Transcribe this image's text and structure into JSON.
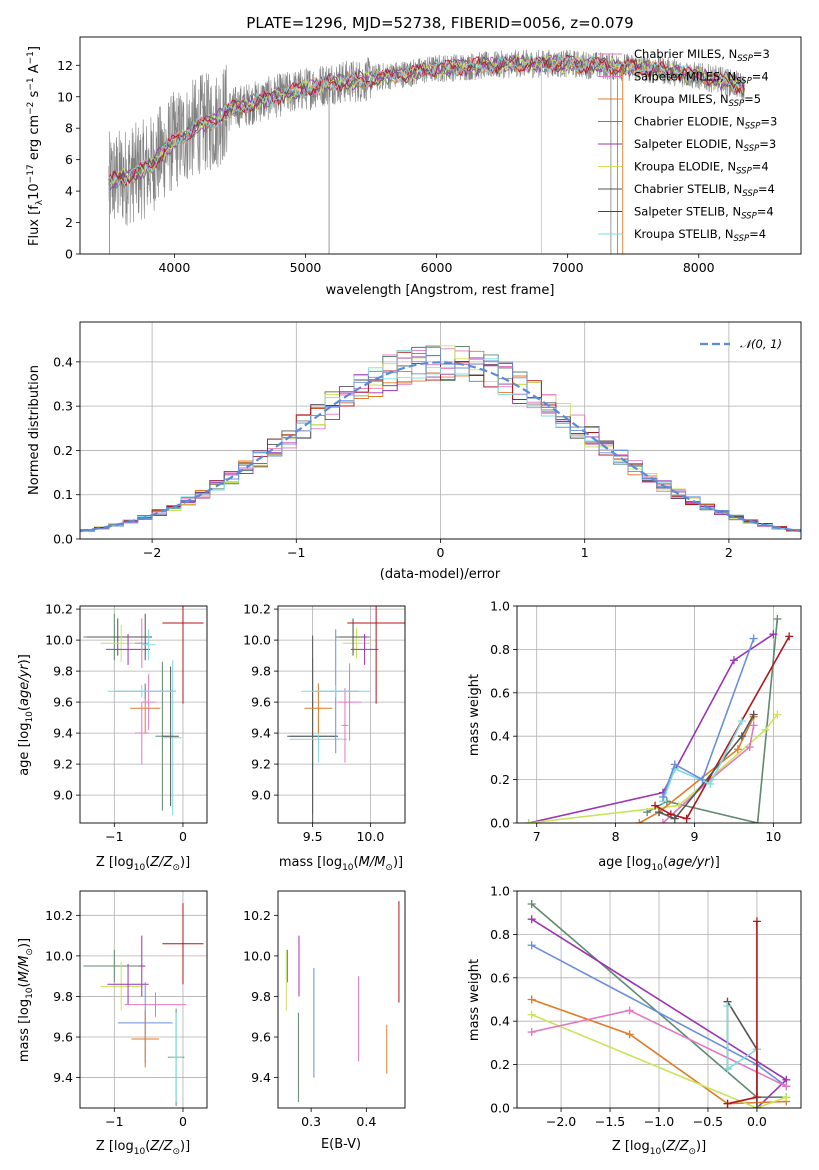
{
  "figure_title": "PLATE=1296, MJD=52738, FIBERID=0056, z=0.079",
  "colors": {
    "Chabrier MILES": "#e377c2",
    "Salpeter MILES": "#e377c2",
    "Kroupa MILES": "#e07b29",
    "Chabrier ELODIE": "#5e8a6e",
    "Salpeter ELODIE": "#9b34b3",
    "Kroupa ELODIE": "#c9e45a",
    "Chabrier STELIB": "#555555",
    "Salpeter STELIB": "#b3161a",
    "Kroupa STELIB": "#7fdce0",
    "normal": "#5b8bd6",
    "blue": "#6a8fdc",
    "data": "#808080"
  },
  "chart_data": [
    {
      "id": "spectrum",
      "type": "line",
      "xlabel": "wavelength [Angstrom, rest frame]",
      "ylabel": "Flux [fλ10⁻¹⁷ erg cm⁻² s⁻¹ A⁻¹]",
      "xlim": [
        3280,
        8780
      ],
      "ylim": [
        0,
        13.8
      ],
      "xticks": [
        4000,
        5000,
        6000,
        7000,
        8000
      ],
      "yticks": [
        0,
        2,
        4,
        6,
        8,
        10,
        12
      ],
      "grid": false,
      "legend": "top-right",
      "continuum_points": [
        [
          3500,
          4.6
        ],
        [
          3650,
          5.0
        ],
        [
          3800,
          5.5
        ],
        [
          3900,
          6.4
        ],
        [
          4000,
          7.2
        ],
        [
          4100,
          7.7
        ],
        [
          4200,
          8.3
        ],
        [
          4300,
          8.4
        ],
        [
          4400,
          9.1
        ],
        [
          4500,
          9.4
        ],
        [
          4600,
          9.6
        ],
        [
          4800,
          10.1
        ],
        [
          5000,
          10.5
        ],
        [
          5200,
          10.9
        ],
        [
          5400,
          11.0
        ],
        [
          5600,
          11.3
        ],
        [
          5800,
          11.5
        ],
        [
          6000,
          11.8
        ],
        [
          6200,
          11.9
        ],
        [
          6400,
          12.0
        ],
        [
          6600,
          12.1
        ],
        [
          6800,
          12.1
        ],
        [
          7000,
          12.1
        ],
        [
          7200,
          12.0
        ],
        [
          7400,
          11.9
        ],
        [
          7600,
          11.8
        ],
        [
          7800,
          11.6
        ],
        [
          8000,
          11.3
        ],
        [
          8200,
          11.0
        ],
        [
          8350,
          10.6
        ]
      ],
      "series": [
        {
          "name": "Chabrier MILES, N_SSP=3"
        },
        {
          "name": "Salpeter MILES, N_SSP=4"
        },
        {
          "name": "Kroupa MILES, N_SSP=5"
        },
        {
          "name": "Chabrier ELODIE, N_SSP=3"
        },
        {
          "name": "Salpeter ELODIE, N_SSP=3"
        },
        {
          "name": "Kroupa ELODIE, N_SSP=4"
        },
        {
          "name": "Chabrier STELIB, N_SSP=4"
        },
        {
          "name": "Salpeter STELIB, N_SSP=4"
        },
        {
          "name": "Kroupa STELIB, N_SSP=4"
        }
      ]
    },
    {
      "id": "residuals",
      "type": "bar",
      "xlabel": "(data-model)/error",
      "ylabel": "Normed distribution",
      "xlim": [
        -2.5,
        2.5
      ],
      "ylim": [
        0,
        0.49
      ],
      "xticks": [
        -2,
        -1,
        0,
        1,
        2
      ],
      "yticks": [
        0.0,
        0.1,
        0.2,
        0.3,
        0.4
      ],
      "grid": true,
      "legend": "top-right",
      "bin_width": 0.1,
      "reference": {
        "name": "𝒩(0, 1)",
        "mean": 0,
        "sigma": 1
      }
    },
    {
      "id": "age-vs-Z",
      "type": "scatter",
      "xlabel": "Z [log10(Z/Z⊙)]",
      "ylabel": "age [log10(age/yr)]",
      "xlim": [
        -1.5,
        0.35
      ],
      "ylim": [
        8.82,
        10.22
      ],
      "xticks": [
        -1,
        0
      ],
      "yticks": [
        9.0,
        9.2,
        9.4,
        9.6,
        9.8,
        10.0,
        10.2
      ],
      "grid": true,
      "points": [
        {
          "model": "Chabrier ELODIE",
          "x": -1.0,
          "y": 10.02,
          "xerr": 0.45,
          "yerr": 0.15
        },
        {
          "model": "Chabrier STELIB",
          "x": -0.95,
          "y": 10.02,
          "xerr": 0.45,
          "yerr": 0.12
        },
        {
          "model": "Kroupa ELODIE",
          "x": -0.9,
          "y": 9.98,
          "xerr": 0.3,
          "yerr": 0.12
        },
        {
          "model": "Salpeter ELODIE",
          "x": -0.8,
          "y": 9.94,
          "xerr": 0.32,
          "yerr": 0.1
        },
        {
          "model": "Salpeter MILES",
          "x": -0.6,
          "y": 9.98,
          "xerr": 0.1,
          "yerr": 0.16
        },
        {
          "model": "Chabrier STELIB",
          "x": -0.55,
          "y": 10.02,
          "xerr": 0.1,
          "yerr": 0.15
        },
        {
          "model": "Kroupa STELIB",
          "x": -0.5,
          "y": 9.97,
          "xerr": 0.1,
          "yerr": 0.1
        },
        {
          "model": "Kroupa MILES",
          "x": -0.55,
          "y": 9.56,
          "xerr": 0.22,
          "yerr": 0.16
        },
        {
          "model": "Salpeter MILES",
          "x": -0.6,
          "y": 9.4,
          "xerr": 0.1,
          "yerr": 0.2
        },
        {
          "model": "Chabrier MILES",
          "x": -0.5,
          "y": 9.6,
          "xerr": 0.1,
          "yerr": 0.18
        },
        {
          "model": "Chabrier ELODIE",
          "x": -0.3,
          "y": 9.38,
          "xerr": 0.1,
          "yerr": 0.48
        },
        {
          "model": "Kroupa STELIB",
          "x": -0.15,
          "y": 9.37,
          "xerr": 0.13,
          "yerr": 0.5
        },
        {
          "model": "Chabrier STELIB",
          "x": -0.18,
          "y": 9.38,
          "xerr": 0.12,
          "yerr": 0.45
        },
        {
          "model": "Blue",
          "x": -0.55,
          "y": 9.67,
          "xerr": 0.45,
          "yerr": 0.05
        },
        {
          "model": "Salpeter STELIB",
          "x": 0.0,
          "y": 10.11,
          "xerr": 0.3,
          "yerr": 0.52
        },
        {
          "model": "Kroupa STELIB",
          "x": -0.6,
          "y": 9.67,
          "xerr": 0.5,
          "yerr": 0.04
        }
      ]
    },
    {
      "id": "age-vs-mass",
      "type": "scatter",
      "xlabel": "mass [log10(M/M⊙)]",
      "ylabel": "",
      "xlim": [
        9.2,
        10.3
      ],
      "ylim": [
        8.82,
        10.22
      ],
      "xticks": [
        9.5,
        10.0
      ],
      "yticks": [
        9.0,
        9.2,
        9.4,
        9.6,
        9.8,
        10.0,
        10.2
      ],
      "grid": true,
      "points": [
        {
          "model": "Chabrier ELODIE",
          "x": 9.5,
          "y": 9.38,
          "xerr": 0.2,
          "yerr": 0.5
        },
        {
          "model": "Chabrier STELIB",
          "x": 9.5,
          "y": 9.38,
          "xerr": 0.22,
          "yerr": 0.65
        },
        {
          "model": "Kroupa STELIB",
          "x": 9.55,
          "y": 9.36,
          "xerr": 0.25,
          "yerr": 0.15
        },
        {
          "model": "Kroupa MILES",
          "x": 9.55,
          "y": 9.56,
          "xerr": 0.12,
          "yerr": 0.16
        },
        {
          "model": "Blue",
          "x": 9.7,
          "y": 9.67,
          "xerr": 0.2,
          "yerr": 0.4
        },
        {
          "model": "Salpeter MILES",
          "x": 9.78,
          "y": 9.45,
          "xerr": 0.03,
          "yerr": 0.24
        },
        {
          "model": "Chabrier MILES",
          "x": 9.82,
          "y": 9.6,
          "xerr": 0.1,
          "yerr": 0.25
        },
        {
          "model": "Chabrier ELODIE",
          "x": 9.85,
          "y": 10.02,
          "xerr": 0.15,
          "yerr": 0.1
        },
        {
          "model": "Kroupa ELODIE",
          "x": 9.88,
          "y": 9.98,
          "xerr": 0.12,
          "yerr": 0.1
        },
        {
          "model": "Chabrier STELIB",
          "x": 9.85,
          "y": 10.02,
          "xerr": 0.12,
          "yerr": 0.12
        },
        {
          "model": "Salpeter ELODIE",
          "x": 9.95,
          "y": 9.94,
          "xerr": 0.12,
          "yerr": 0.1
        },
        {
          "model": "Salpeter STELIB",
          "x": 10.05,
          "y": 10.11,
          "xerr": 0.25,
          "yerr": 0.52
        },
        {
          "model": "Kroupa STELIB",
          "x": 9.7,
          "y": 9.67,
          "xerr": 0.3,
          "yerr": 0.04
        }
      ]
    },
    {
      "id": "weight-vs-age",
      "type": "line",
      "xlabel": "age [log10(age/yr)]",
      "ylabel": "mass weight",
      "xlim": [
        6.75,
        10.35
      ],
      "ylim": [
        0,
        1.0
      ],
      "xticks": [
        7,
        8,
        9,
        10
      ],
      "yticks": [
        0.0,
        0.2,
        0.4,
        0.6,
        0.8,
        1.0
      ],
      "grid": true,
      "series": [
        {
          "model": "Chabrier ELODIE",
          "x": [
            8.4,
            8.65,
            9.8,
            10.05
          ],
          "y": [
            0.05,
            0.1,
            0.0,
            0.94
          ]
        },
        {
          "model": "Salpeter ELODIE",
          "x": [
            6.9,
            8.6,
            9.5,
            10.0
          ],
          "y": [
            0.0,
            0.14,
            0.75,
            0.87
          ]
        },
        {
          "model": "Kroupa ELODIE",
          "x": [
            6.9,
            8.8,
            9.9,
            10.05
          ],
          "y": [
            0.0,
            0.08,
            0.43,
            0.5
          ]
        },
        {
          "model": "Kroupa MILES",
          "x": [
            8.3,
            8.55,
            9.55,
            9.75
          ],
          "y": [
            0.0,
            0.05,
            0.34,
            0.49
          ]
        },
        {
          "model": "Chabrier MILES",
          "x": [
            8.6,
            9.2,
            9.7,
            9.75
          ],
          "y": [
            0.0,
            0.2,
            0.35,
            0.45
          ]
        },
        {
          "model": "Salpeter STELIB",
          "x": [
            8.5,
            8.7,
            8.9,
            10.2
          ],
          "y": [
            0.08,
            0.04,
            0.02,
            0.86
          ]
        },
        {
          "model": "Chabrier STELIB",
          "x": [
            8.55,
            8.75,
            9.6,
            9.75
          ],
          "y": [
            0.05,
            0.02,
            0.4,
            0.5
          ]
        },
        {
          "model": "Kroupa STELIB",
          "x": [
            8.6,
            8.75,
            9.2,
            9.6
          ],
          "y": [
            0.1,
            0.25,
            0.18,
            0.47
          ]
        },
        {
          "model": "Blue",
          "x": [
            8.6,
            8.75,
            9.1,
            9.75
          ],
          "y": [
            0.12,
            0.27,
            0.2,
            0.85
          ]
        }
      ]
    },
    {
      "id": "mass-vs-Z",
      "type": "scatter",
      "xlabel": "Z [log10(Z/Z⊙)]",
      "ylabel": "mass [log10(M/M⊙)]",
      "xlim": [
        -1.5,
        0.35
      ],
      "ylim": [
        9.25,
        10.32
      ],
      "xticks": [
        -1,
        0
      ],
      "yticks": [
        9.4,
        9.6,
        9.8,
        10.0,
        10.2
      ],
      "grid": true,
      "points": [
        {
          "model": "Chabrier ELODIE",
          "x": -1.0,
          "y": 9.95,
          "xerr": 0.45,
          "yerr": 0.08
        },
        {
          "model": "Kroupa ELODIE",
          "x": -0.9,
          "y": 9.85,
          "xerr": 0.3,
          "yerr": 0.12
        },
        {
          "model": "Salpeter ELODIE",
          "x": -0.8,
          "y": 9.86,
          "xerr": 0.3,
          "yerr": 0.1
        },
        {
          "model": "Salpeter ELODIE",
          "x": -0.6,
          "y": 9.95,
          "xerr": 0.05,
          "yerr": 0.15
        },
        {
          "model": "Salpeter MILES",
          "x": -0.4,
          "y": 9.76,
          "xerr": 0.45,
          "yerr": 0.06
        },
        {
          "model": "Blue",
          "x": -0.55,
          "y": 9.67,
          "xerr": 0.4,
          "yerr": 0.2
        },
        {
          "model": "Kroupa MILES",
          "x": -0.55,
          "y": 9.59,
          "xerr": 0.2,
          "yerr": 0.14
        },
        {
          "model": "Chabrier ELODIE",
          "x": -0.1,
          "y": 9.5,
          "xerr": 0.12,
          "yerr": 0.24
        },
        {
          "model": "Kroupa STELIB",
          "x": -0.1,
          "y": 9.5,
          "xerr": 0.1,
          "yerr": 0.22
        },
        {
          "model": "Salpeter STELIB",
          "x": 0.0,
          "y": 10.06,
          "xerr": 0.3,
          "yerr": 0.2
        }
      ]
    },
    {
      "id": "mass-vs-EBV",
      "type": "scatter",
      "xlabel": "E(B-V)",
      "ylabel": "",
      "xlim": [
        0.24,
        0.47
      ],
      "ylim": [
        9.25,
        10.32
      ],
      "xticks": [
        0.3,
        0.4
      ],
      "yticks": [
        9.4,
        9.6,
        9.8,
        10.0,
        10.2
      ],
      "grid": false,
      "points": [
        {
          "model": "Kroupa ELODIE",
          "x": 0.255,
          "y": 9.88,
          "xerr": 0,
          "yerr": 0.15
        },
        {
          "model": "Chabrier ELODIE",
          "x": 0.257,
          "y": 9.95,
          "xerr": 0,
          "yerr": 0.08
        },
        {
          "model": "Salpeter ELODIE",
          "x": 0.278,
          "y": 9.95,
          "xerr": 0,
          "yerr": 0.15
        },
        {
          "model": "Chabrier ELODIE",
          "x": 0.277,
          "y": 9.5,
          "xerr": 0,
          "yerr": 0.22
        },
        {
          "model": "Blue",
          "x": 0.305,
          "y": 9.67,
          "xerr": 0,
          "yerr": 0.27
        },
        {
          "model": "Chabrier MILES",
          "x": 0.386,
          "y": 9.69,
          "xerr": 0,
          "yerr": 0.21
        },
        {
          "model": "Kroupa MILES",
          "x": 0.437,
          "y": 9.54,
          "xerr": 0,
          "yerr": 0.12
        },
        {
          "model": "Salpeter STELIB",
          "x": 0.459,
          "y": 10.02,
          "xerr": 0,
          "yerr": 0.25
        }
      ]
    },
    {
      "id": "weight-vs-Z",
      "type": "line",
      "xlabel": "Z [log10(Z/Z⊙)]",
      "ylabel": "mass weight",
      "xlim": [
        -2.45,
        0.45
      ],
      "ylim": [
        0,
        1.0
      ],
      "xticks": [
        -2.0,
        -1.5,
        -1.0,
        -0.5,
        0.0
      ],
      "yticks": [
        0.0,
        0.2,
        0.4,
        0.6,
        0.8,
        1.0
      ],
      "grid": true,
      "series": [
        {
          "model": "Chabrier ELODIE",
          "x": [
            -2.3,
            0.0,
            0.3
          ],
          "y": [
            0.94,
            0.05,
            0.05
          ]
        },
        {
          "model": "Salpeter ELODIE",
          "x": [
            -2.3,
            0.3,
            0.0
          ],
          "y": [
            0.87,
            0.13,
            0.0
          ]
        },
        {
          "model": "Blue",
          "x": [
            -2.3,
            0.0,
            0.3
          ],
          "y": [
            0.75,
            0.2,
            0.1
          ]
        },
        {
          "model": "Kroupa MILES",
          "x": [
            -2.3,
            -1.3,
            -0.3,
            0.3
          ],
          "y": [
            0.5,
            0.34,
            0.02,
            0.03
          ]
        },
        {
          "model": "Kroupa ELODIE",
          "x": [
            -2.3,
            0.0,
            0.3
          ],
          "y": [
            0.43,
            0.0,
            0.05
          ]
        },
        {
          "model": "Chabrier MILES",
          "x": [
            -2.3,
            -1.3,
            0.3
          ],
          "y": [
            0.35,
            0.45,
            0.1
          ]
        },
        {
          "model": "Chabrier STELIB",
          "x": [
            -0.3,
            -0.3,
            0.0,
            0.0
          ],
          "y": [
            0.18,
            0.49,
            0.27,
            0.0
          ]
        },
        {
          "model": "Kroupa STELIB",
          "x": [
            -0.3,
            -0.3,
            0.0
          ],
          "y": [
            0.47,
            0.18,
            0.27
          ]
        },
        {
          "model": "Salpeter STELIB",
          "x": [
            -0.3,
            0.0,
            0.0
          ],
          "y": [
            0.02,
            0.05,
            0.86
          ]
        }
      ]
    }
  ]
}
